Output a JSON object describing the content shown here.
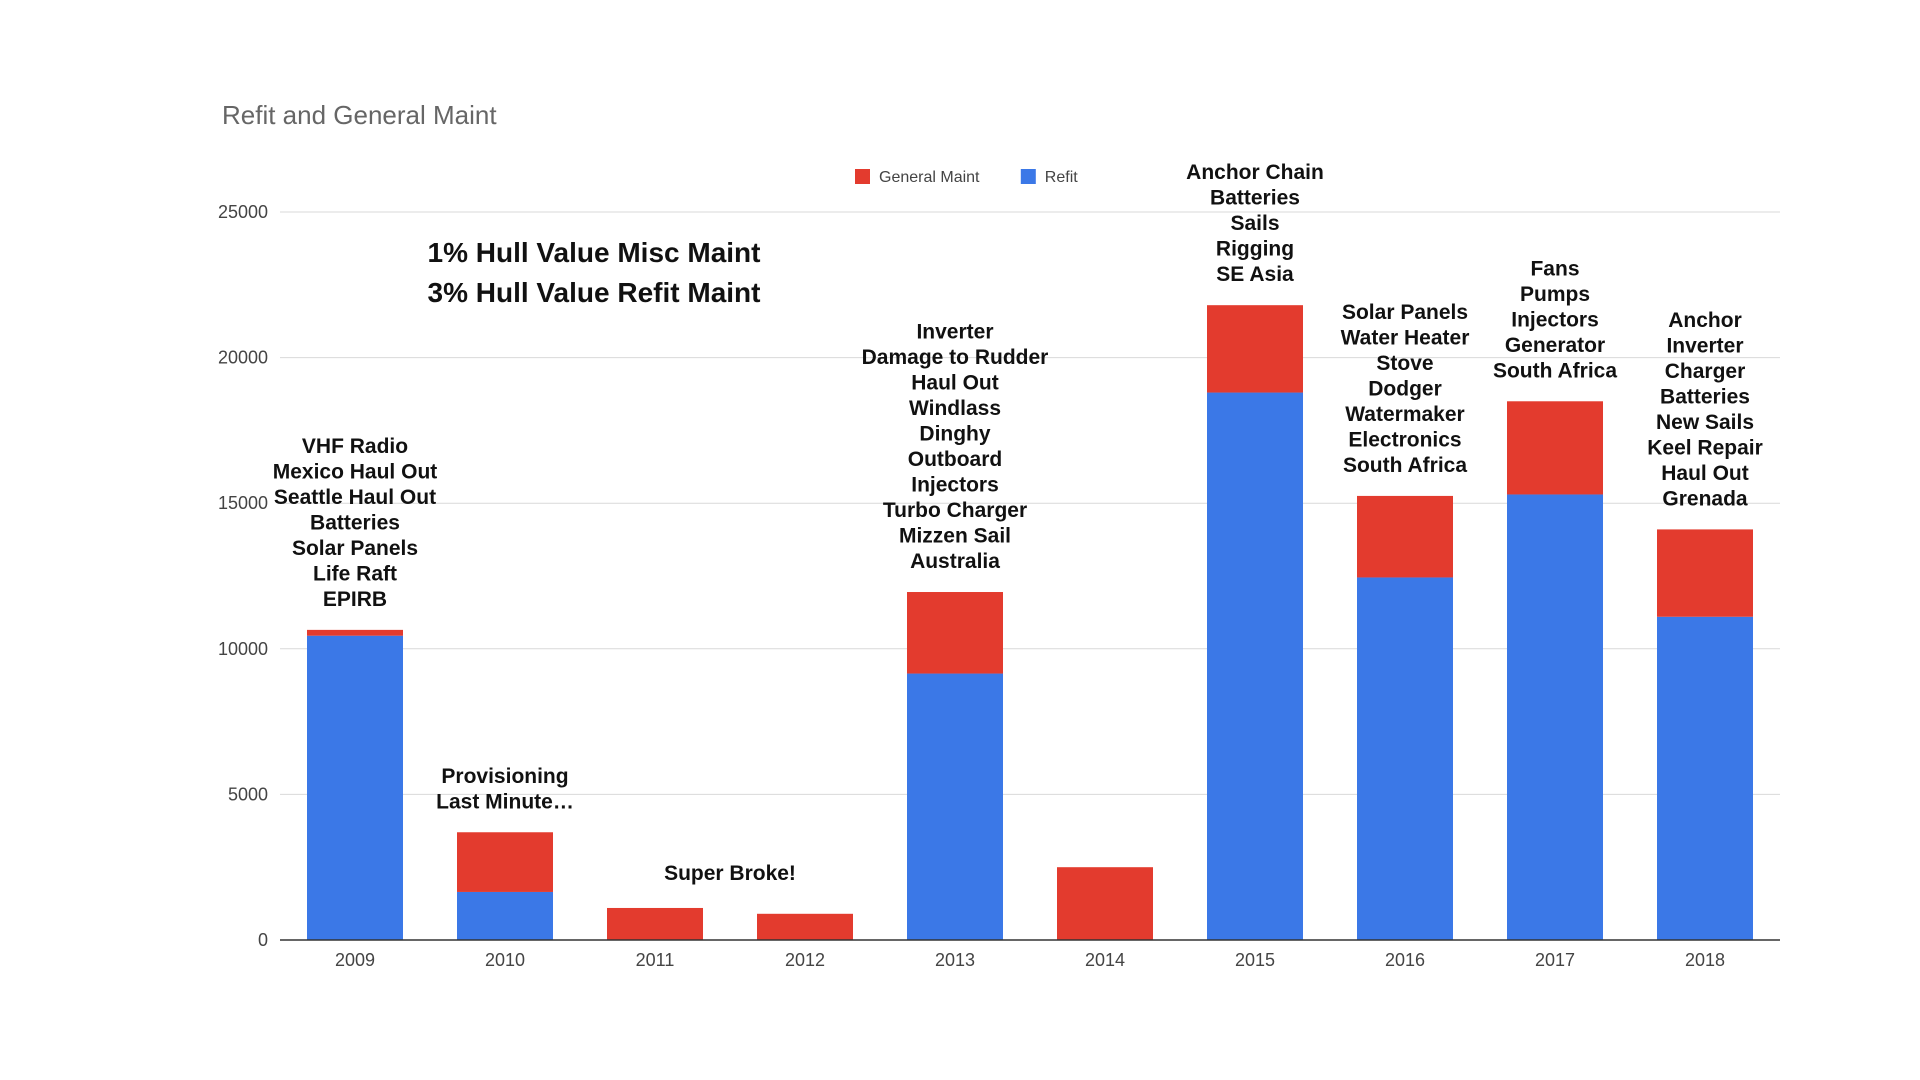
{
  "chart_data": {
    "type": "bar",
    "stacked": true,
    "title": "Refit and General Maint",
    "xlabel": "",
    "ylabel": "",
    "ylim": [
      0,
      25000
    ],
    "yticks": [
      0,
      5000,
      10000,
      15000,
      20000,
      25000
    ],
    "categories": [
      "2009",
      "2010",
      "2011",
      "2012",
      "2013",
      "2014",
      "2015",
      "2016",
      "2017",
      "2018"
    ],
    "series": [
      {
        "name": "Refit",
        "color": "#3b78e7",
        "values": [
          10450,
          1650,
          0,
          0,
          9150,
          0,
          18800,
          12450,
          15300,
          11100
        ]
      },
      {
        "name": "General Maint",
        "color": "#e33b2e",
        "values": [
          200,
          2050,
          1100,
          900,
          2800,
          2500,
          3000,
          2800,
          3200,
          3000
        ]
      }
    ],
    "legend": {
      "position": "top-center",
      "entries": [
        "General Maint",
        "Refit"
      ]
    },
    "headlines": [
      "1% Hull Value Misc Maint",
      "3% Hull Value Refit Maint"
    ],
    "annotations": [
      {
        "category": "2009",
        "lines": [
          "VHF Radio",
          "Mexico Haul Out",
          "Seattle Haul Out",
          "Batteries",
          "Solar Panels",
          "Life Raft",
          "EPIRB"
        ]
      },
      {
        "category": "2010",
        "lines": [
          "Provisioning",
          "Last Minute…"
        ]
      },
      {
        "category": "2011",
        "lines": [
          "Super Broke!"
        ]
      },
      {
        "category": "2013",
        "lines": [
          "Inverter",
          "Damage to Rudder",
          "Haul Out",
          "Windlass",
          "Dinghy",
          "Outboard",
          "Injectors",
          "Turbo Charger",
          "Mizzen Sail",
          "Australia"
        ]
      },
      {
        "category": "2015",
        "lines": [
          "Anchor Chain",
          "Batteries",
          "Sails",
          "Rigging",
          "SE Asia"
        ]
      },
      {
        "category": "2016",
        "lines": [
          "Solar Panels",
          "Water Heater",
          "Stove",
          "Dodger",
          "Watermaker",
          "Electronics",
          "South Africa"
        ]
      },
      {
        "category": "2017",
        "lines": [
          "Fans",
          "Pumps",
          "Injectors",
          "Generator",
          "South Africa"
        ]
      },
      {
        "category": "2018",
        "lines": [
          "Anchor",
          "Inverter",
          "Charger",
          "Batteries",
          "New Sails",
          "Keel Repair",
          "Haul Out",
          "Grenada"
        ]
      }
    ]
  }
}
